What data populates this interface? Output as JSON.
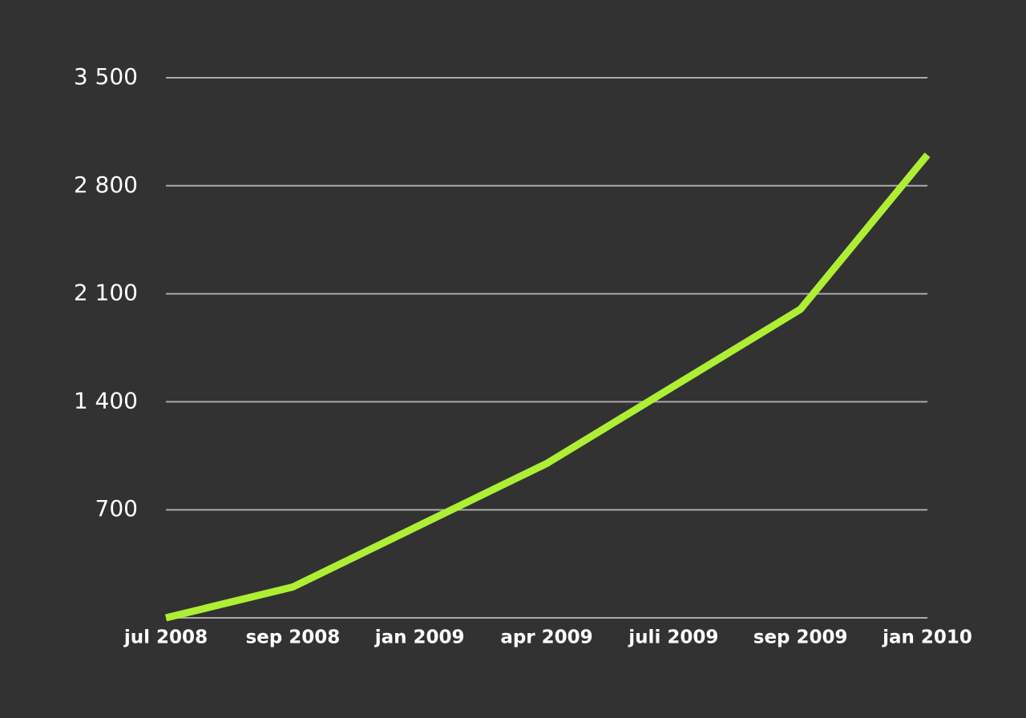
{
  "chart_data": {
    "type": "line",
    "categories": [
      "jul 2008",
      "sep 2008",
      "jan 2009",
      "apr 2009",
      "juli 2009",
      "sep 2009",
      "jan 2010"
    ],
    "series": [
      {
        "name": null,
        "color": "#aeef35",
        "values": [
          0,
          200,
          600,
          1000,
          1500,
          2000,
          3000
        ]
      }
    ],
    "ylim": [
      0,
      3500
    ],
    "yticks": [
      {
        "value": 700,
        "label": "700"
      },
      {
        "value": 1400,
        "label": "1 400"
      },
      {
        "value": 2100,
        "label": "2 100"
      },
      {
        "value": 2800,
        "label": "2 800"
      },
      {
        "value": 3500,
        "label": "3 500"
      }
    ],
    "grid": true
  }
}
